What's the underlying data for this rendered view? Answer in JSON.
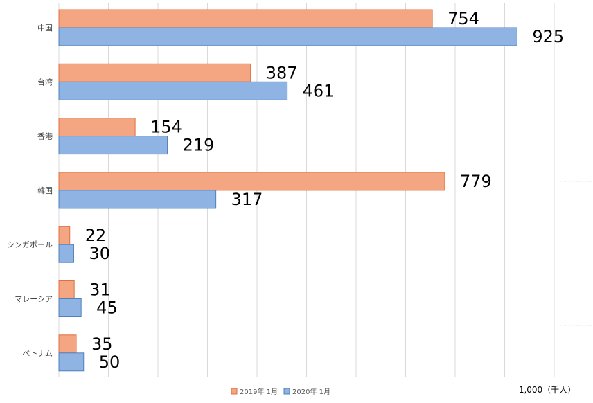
{
  "chart_data": {
    "type": "bar",
    "orientation": "horizontal",
    "categories": [
      "中国",
      "台湾",
      "香港",
      "韓国",
      "シンガポール",
      "マレーシア",
      "ベトナム"
    ],
    "series": [
      {
        "name": "2019年 1月",
        "values": [
          754,
          387,
          154,
          779,
          22,
          31,
          35
        ],
        "color": "#F4A582"
      },
      {
        "name": "2020年 1月",
        "values": [
          925,
          461,
          219,
          317,
          30,
          45,
          50
        ],
        "color": "#8FB4E3"
      }
    ],
    "xlim": [
      0,
      1000
    ],
    "grid": true,
    "legend_position": "bottom",
    "axis_note": "1,000（千人）"
  },
  "colors": {
    "series_2019_fill": "#F4A582",
    "series_2019_stroke": "#E0703F",
    "series_2020_fill": "#8FB4E3",
    "series_2020_stroke": "#4F81BD",
    "grid": "#D9D9D9"
  }
}
